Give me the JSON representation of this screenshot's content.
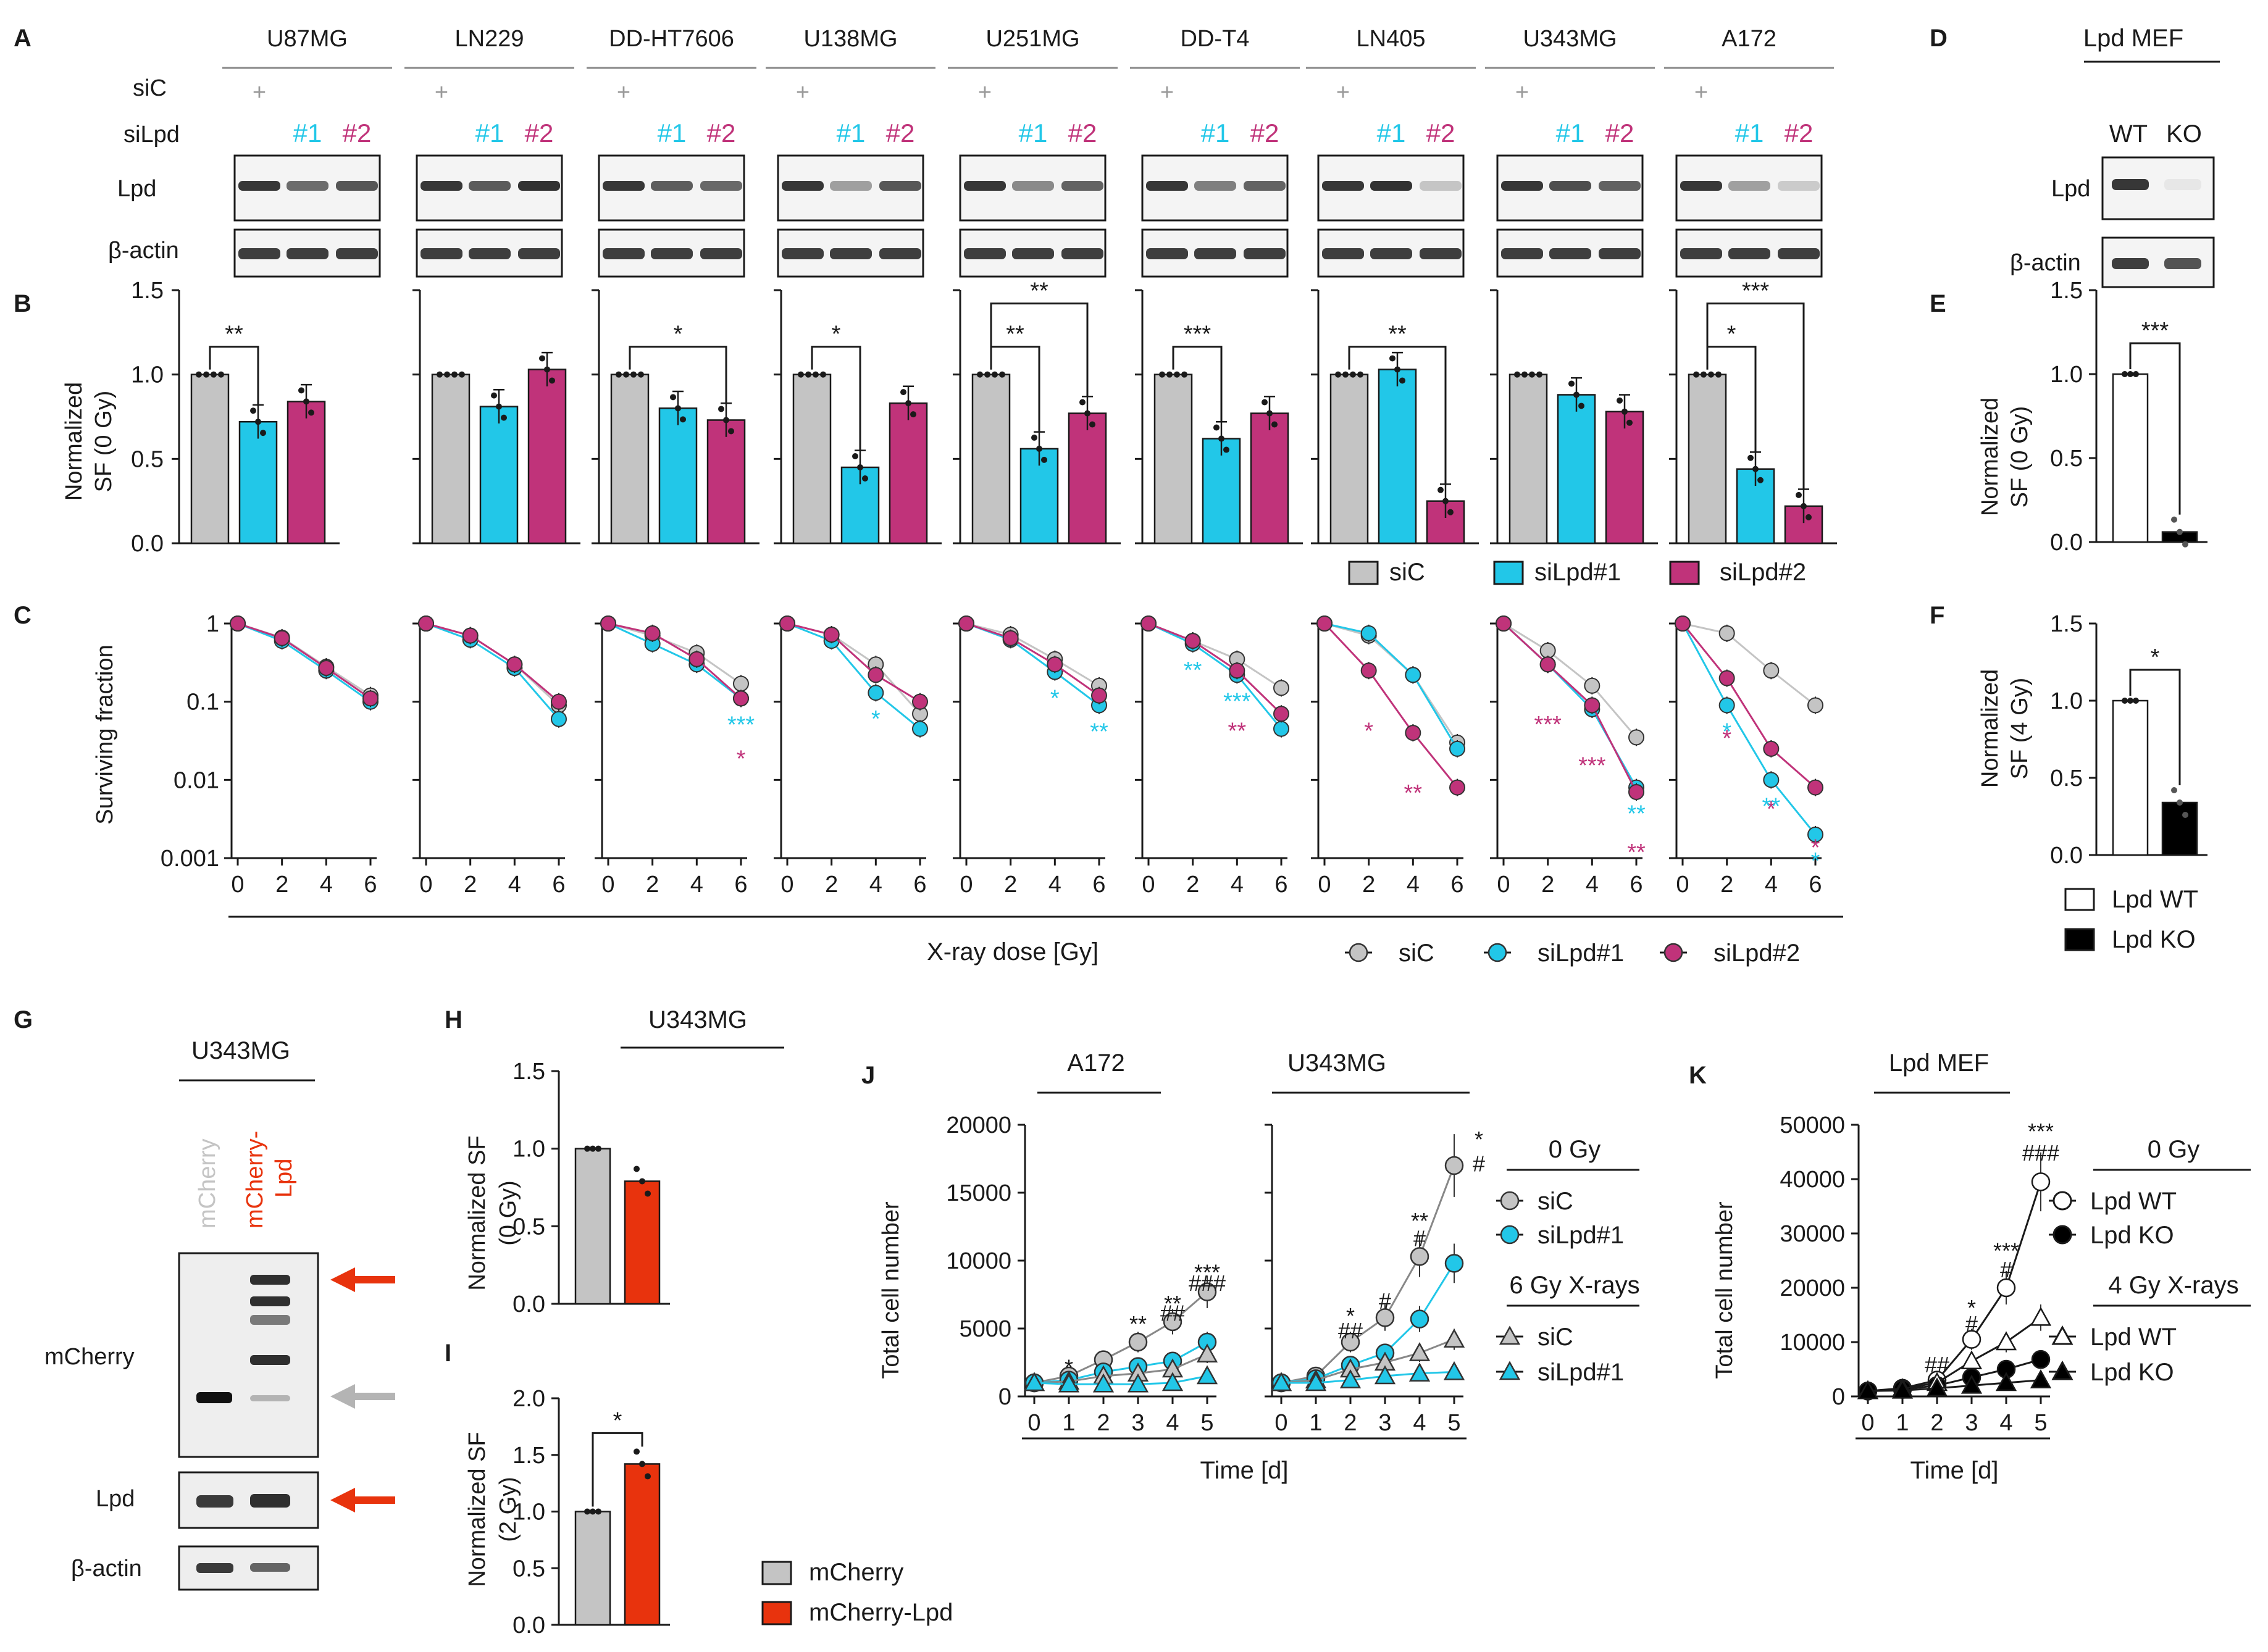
{
  "colors": {
    "siC": "#c4c4c4",
    "siLpd1": "#22c7e8",
    "siLpd2": "#c0337a",
    "mcherry": "#c4c4c4",
    "mcherry_lpd": "#e8330d",
    "wt": "#ffffff",
    "ko": "#000000",
    "text": "#1a1a1a"
  },
  "labels": {
    "A": "A",
    "B": "B",
    "C": "C",
    "D": "D",
    "E": "E",
    "F": "F",
    "G": "G",
    "H": "H",
    "I": "I",
    "J": "J",
    "K": "K"
  },
  "panel_a": {
    "cell_lines": [
      "U87MG",
      "LN229",
      "DD-HT7606",
      "U138MG",
      "U251MG",
      "DD-T4",
      "LN405",
      "U343MG",
      "A172"
    ],
    "siC_label": "siC",
    "siLpd_label": "siLpd",
    "plus": "+",
    "sirna_1": "#1",
    "sirna_2": "#2",
    "lpd_label": "Lpd",
    "actin_label": "β-actin"
  },
  "panel_b": {
    "ylabel_1": "Normalized",
    "ylabel_2": "SF (0 Gy)",
    "yticks": [
      "0.0",
      "0.5",
      "1.0",
      "1.5"
    ],
    "ylim": [
      0,
      1.5
    ],
    "means": [
      [
        1.0,
        0.72,
        0.84
      ],
      [
        1.0,
        0.81,
        1.03
      ],
      [
        1.0,
        0.8,
        0.73
      ],
      [
        1.0,
        0.45,
        0.83
      ],
      [
        1.0,
        0.56,
        0.77
      ],
      [
        1.0,
        0.62,
        0.77
      ],
      [
        1.0,
        1.03,
        0.25
      ],
      [
        1.0,
        0.88,
        0.78
      ],
      [
        1.0,
        0.44,
        0.22
      ]
    ],
    "significance": [
      [
        {
          "pair": [
            0,
            1
          ],
          "text": "**"
        }
      ],
      [],
      [
        {
          "pair": [
            0,
            2
          ],
          "text": "*"
        }
      ],
      [
        {
          "pair": [
            0,
            1
          ],
          "text": "*"
        }
      ],
      [
        {
          "pair": [
            0,
            1
          ],
          "text": "**"
        },
        {
          "pair": [
            0,
            2
          ],
          "text": "**"
        }
      ],
      [
        {
          "pair": [
            0,
            1
          ],
          "text": "***"
        }
      ],
      [
        {
          "pair": [
            0,
            2
          ],
          "text": "**"
        }
      ],
      [],
      [
        {
          "pair": [
            0,
            1
          ],
          "text": "*"
        },
        {
          "pair": [
            0,
            2
          ],
          "text": "***"
        }
      ]
    ],
    "legend": [
      "siC",
      "siLpd#1",
      "siLpd#2"
    ]
  },
  "panel_c": {
    "ylabel": "Surviving fraction",
    "yticks": [
      "0.001",
      "0.01",
      "0.1",
      "1"
    ],
    "xticks": [
      "0",
      "2",
      "4",
      "6"
    ],
    "xlabel": "X-ray dose [Gy]",
    "legend": [
      "siC",
      "siLpd#1",
      "siLpd#2"
    ]
  },
  "panel_d": {
    "title": "Lpd MEF",
    "wt": "WT",
    "ko": "KO",
    "lpd_label": "Lpd",
    "actin_label": "β-actin"
  },
  "panel_e": {
    "ylabel_1": "Normalized",
    "ylabel_2": "SF (0 Gy)",
    "yticks": [
      "0.0",
      "0.5",
      "1.0",
      "1.5"
    ],
    "values": [
      1.0,
      0.06
    ],
    "significance": "***"
  },
  "panel_f": {
    "ylabel_1": "Normalized",
    "ylabel_2": "SF (4 Gy)",
    "yticks": [
      "0.0",
      "0.5",
      "1.0",
      "1.5"
    ],
    "values": [
      1.0,
      0.34
    ],
    "significance": "*",
    "legend": [
      "Lpd WT",
      "Lpd KO"
    ]
  },
  "panel_g": {
    "title": "U343MG",
    "lane1": "mCherry",
    "lane2_1": "mCherry-",
    "lane2_2": "Lpd",
    "mcherry_label": "mCherry",
    "lpd_label": "Lpd",
    "actin_label": "β-actin"
  },
  "panel_h": {
    "title": "U343MG",
    "ylabel_1": "Normalized SF",
    "ylabel_2": "(0 Gy)",
    "yticks": [
      "0.0",
      "0.5",
      "1.0",
      "1.5"
    ],
    "values": [
      1.0,
      0.79
    ]
  },
  "panel_i": {
    "ylabel_1": "Normalized SF",
    "ylabel_2": "(2 Gy)",
    "yticks": [
      "0.0",
      "0.5",
      "1.0",
      "1.5",
      "2.0"
    ],
    "values": [
      1.0,
      1.42
    ],
    "significance": "*",
    "legend": [
      "mCherry",
      "mCherry-Lpd"
    ]
  },
  "panel_j": {
    "titles": [
      "A172",
      "U343MG"
    ],
    "ylabel": "Total cell number",
    "yticks": [
      "0",
      "5000",
      "10000",
      "15000",
      "20000"
    ],
    "xticks": [
      "0",
      "1",
      "2",
      "3",
      "4",
      "5"
    ],
    "xlabel": "Time [d]",
    "legend_0gy": "0 Gy",
    "legend_6gy": "6 Gy X-rays",
    "legend_siC": "siC",
    "legend_siLpd": "siLpd#1"
  },
  "panel_k": {
    "title": "Lpd MEF",
    "ylabel": "Total cell number",
    "yticks": [
      "0",
      "10000",
      "20000",
      "30000",
      "40000",
      "50000"
    ],
    "xticks": [
      "0",
      "1",
      "2",
      "3",
      "4",
      "5"
    ],
    "xlabel": "Time [d]",
    "legend_0gy": "0 Gy",
    "legend_4gy": "4 Gy X-rays",
    "legend_wt": "Lpd WT",
    "legend_ko": "Lpd KO"
  },
  "chart_data": [
    {
      "type": "bar",
      "panel": "B",
      "title": "",
      "ylabel": "Normalized SF (0 Gy)",
      "ylim": [
        0,
        1.5
      ],
      "categories": [
        "U87MG",
        "LN229",
        "DD-HT7606",
        "U138MG",
        "U251MG",
        "DD-T4",
        "LN405",
        "U343MG",
        "A172"
      ],
      "series": [
        {
          "name": "siC",
          "values": [
            1.0,
            1.0,
            1.0,
            1.0,
            1.0,
            1.0,
            1.0,
            1.0,
            1.0
          ]
        },
        {
          "name": "siLpd#1",
          "values": [
            0.72,
            0.81,
            0.8,
            0.45,
            0.56,
            0.62,
            1.03,
            0.88,
            0.44
          ]
        },
        {
          "name": "siLpd#2",
          "values": [
            0.84,
            1.03,
            0.73,
            0.83,
            0.77,
            0.77,
            0.25,
            0.78,
            0.22
          ]
        }
      ]
    },
    {
      "type": "line",
      "panel": "C",
      "ylabel": "Surviving fraction",
      "xlabel": "X-ray dose [Gy]",
      "yscale": "log",
      "ylim": [
        0.001,
        1
      ],
      "x": [
        0,
        2,
        4,
        6
      ],
      "lines": [
        {
          "cell": "U87MG",
          "series": [
            {
              "name": "siC",
              "values": [
                1,
                0.66,
                0.28,
                0.12
              ]
            },
            {
              "name": "siLpd#1",
              "values": [
                1,
                0.6,
                0.25,
                0.1
              ]
            },
            {
              "name": "siLpd#2",
              "values": [
                1,
                0.65,
                0.27,
                0.11
              ]
            }
          ]
        },
        {
          "cell": "LN229",
          "series": [
            {
              "name": "siC",
              "values": [
                1,
                0.7,
                0.3,
                0.09
              ]
            },
            {
              "name": "siLpd#1",
              "values": [
                1,
                0.62,
                0.27,
                0.06
              ]
            },
            {
              "name": "siLpd#2",
              "values": [
                1,
                0.7,
                0.3,
                0.1
              ]
            }
          ]
        },
        {
          "cell": "DD-HT7606",
          "series": [
            {
              "name": "siC",
              "values": [
                1,
                0.7,
                0.42,
                0.17
              ]
            },
            {
              "name": "siLpd#1",
              "values": [
                1,
                0.55,
                0.3,
                0.11
              ]
            },
            {
              "name": "siLpd#2",
              "values": [
                1,
                0.75,
                0.35,
                0.11
              ]
            }
          ]
        },
        {
          "cell": "U138MG",
          "series": [
            {
              "name": "siC",
              "values": [
                1,
                0.72,
                0.3,
                0.07
              ]
            },
            {
              "name": "siLpd#1",
              "values": [
                1,
                0.6,
                0.13,
                0.045
              ]
            },
            {
              "name": "siLpd#2",
              "values": [
                1,
                0.72,
                0.22,
                0.1
              ]
            }
          ]
        },
        {
          "cell": "U251MG",
          "series": [
            {
              "name": "siC",
              "values": [
                1,
                0.72,
                0.35,
                0.16
              ]
            },
            {
              "name": "siLpd#1",
              "values": [
                1,
                0.62,
                0.24,
                0.09
              ]
            },
            {
              "name": "siLpd#2",
              "values": [
                1,
                0.65,
                0.3,
                0.12
              ]
            }
          ]
        },
        {
          "cell": "DD-T4",
          "series": [
            {
              "name": "siC",
              "values": [
                1,
                0.6,
                0.35,
                0.15
              ]
            },
            {
              "name": "siLpd#1",
              "values": [
                1,
                0.55,
                0.22,
                0.045
              ]
            },
            {
              "name": "siLpd#2",
              "values": [
                1,
                0.6,
                0.25,
                0.07
              ]
            }
          ]
        },
        {
          "cell": "LN405",
          "series": [
            {
              "name": "siC",
              "values": [
                1,
                0.7,
                0.22,
                0.03
              ]
            },
            {
              "name": "siLpd#1",
              "values": [
                1,
                0.75,
                0.22,
                0.025
              ]
            },
            {
              "name": "siLpd#2",
              "values": [
                1,
                0.25,
                0.04,
                0.008
              ]
            }
          ]
        },
        {
          "cell": "U343MG",
          "series": [
            {
              "name": "siC",
              "values": [
                1,
                0.45,
                0.16,
                0.035
              ]
            },
            {
              "name": "siLpd#1",
              "values": [
                1,
                0.3,
                0.08,
                0.008
              ]
            },
            {
              "name": "siLpd#2",
              "values": [
                1,
                0.3,
                0.09,
                0.007
              ]
            }
          ]
        },
        {
          "cell": "A172",
          "series": [
            {
              "name": "siC",
              "values": [
                1,
                0.75,
                0.25,
                0.09
              ]
            },
            {
              "name": "siLpd#1",
              "values": [
                1,
                0.09,
                0.01,
                0.002
              ]
            },
            {
              "name": "siLpd#2",
              "values": [
                1,
                0.2,
                0.025,
                0.008
              ]
            }
          ]
        }
      ],
      "significance": [
        {
          "cell": "DD-HT7606",
          "x": 6,
          "series": "siLpd#1",
          "text": "***"
        },
        {
          "cell": "DD-HT7606",
          "x": 6,
          "series": "siLpd#2",
          "text": "*"
        },
        {
          "cell": "U138MG",
          "x": 4,
          "series": "siLpd#1",
          "text": "*"
        },
        {
          "cell": "U251MG",
          "x": 4,
          "series": "siLpd#1",
          "text": "*"
        },
        {
          "cell": "U251MG",
          "x": 6,
          "series": "siLpd#1",
          "text": "**"
        },
        {
          "cell": "DD-T4",
          "x": 2,
          "series": "siLpd#1",
          "text": "**"
        },
        {
          "cell": "DD-T4",
          "x": 4,
          "series": "siLpd#1",
          "text": "***"
        },
        {
          "cell": "DD-T4",
          "x": 4,
          "series": "siLpd#2",
          "text": "**"
        },
        {
          "cell": "LN405",
          "x": 2,
          "series": "siLpd#2",
          "text": "*"
        },
        {
          "cell": "LN405",
          "x": 4,
          "series": "siLpd#2",
          "text": "**"
        },
        {
          "cell": "U343MG",
          "x": 2,
          "series": "siLpd#2",
          "text": "***"
        },
        {
          "cell": "U343MG",
          "x": 4,
          "series": "siLpd#2",
          "text": "***"
        },
        {
          "cell": "U343MG",
          "x": 6,
          "series": "siLpd#1",
          "text": "**"
        },
        {
          "cell": "U343MG",
          "x": 6,
          "series": "siLpd#2",
          "text": "**"
        },
        {
          "cell": "A172",
          "x": 2,
          "series": "siLpd#2",
          "text": "*"
        },
        {
          "cell": "A172",
          "x": 2,
          "series": "siLpd#1",
          "text": "*"
        },
        {
          "cell": "A172",
          "x": 4,
          "series": "siLpd#2",
          "text": "*"
        },
        {
          "cell": "A172",
          "x": 4,
          "series": "siLpd#1",
          "text": "**"
        },
        {
          "cell": "A172",
          "x": 6,
          "series": "siLpd#2",
          "text": "*"
        },
        {
          "cell": "A172",
          "x": 6,
          "series": "siLpd#1",
          "text": "*"
        }
      ]
    },
    {
      "type": "bar",
      "panel": "E",
      "ylabel": "Normalized SF (0 Gy)",
      "ylim": [
        0,
        1.5
      ],
      "categories": [
        "Lpd WT",
        "Lpd KO"
      ],
      "values": [
        1.0,
        0.06
      ]
    },
    {
      "type": "bar",
      "panel": "F",
      "ylabel": "Normalized SF (4 Gy)",
      "ylim": [
        0,
        1.5
      ],
      "categories": [
        "Lpd WT",
        "Lpd KO"
      ],
      "values": [
        1.0,
        0.34
      ]
    },
    {
      "type": "bar",
      "panel": "H",
      "title": "U343MG",
      "ylabel": "Normalized SF (0 Gy)",
      "ylim": [
        0,
        1.5
      ],
      "categories": [
        "mCherry",
        "mCherry-Lpd"
      ],
      "values": [
        1.0,
        0.79
      ]
    },
    {
      "type": "bar",
      "panel": "I",
      "ylabel": "Normalized SF (2 Gy)",
      "ylim": [
        0,
        2.0
      ],
      "categories": [
        "mCherry",
        "mCherry-Lpd"
      ],
      "values": [
        1.0,
        1.42
      ]
    },
    {
      "type": "line",
      "panel": "J",
      "title": "A172",
      "ylabel": "Total cell number",
      "xlabel": "Time [d]",
      "ylim": [
        0,
        20000
      ],
      "x": [
        0,
        1,
        2,
        3,
        4,
        5
      ],
      "series": [
        {
          "name": "siC 0 Gy",
          "values": [
            1000,
            1500,
            2700,
            4000,
            5500,
            7700
          ]
        },
        {
          "name": "siLpd#1 0 Gy",
          "values": [
            1000,
            1200,
            1800,
            2200,
            2600,
            4000
          ]
        },
        {
          "name": "siC 6 Gy X-rays",
          "values": [
            1000,
            1100,
            1500,
            1700,
            2000,
            3100
          ]
        },
        {
          "name": "siLpd#1 6 Gy X-rays",
          "values": [
            1000,
            900,
            900,
            900,
            1000,
            1500
          ]
        }
      ]
    },
    {
      "type": "line",
      "panel": "J",
      "title": "U343MG",
      "ylabel": "Total cell number",
      "xlabel": "Time [d]",
      "ylim": [
        0,
        20000
      ],
      "x": [
        0,
        1,
        2,
        3,
        4,
        5
      ],
      "series": [
        {
          "name": "siC 0 Gy",
          "values": [
            1000,
            1500,
            4000,
            5800,
            10300,
            17000
          ]
        },
        {
          "name": "siLpd#1 0 Gy",
          "values": [
            1000,
            1300,
            2300,
            3200,
            5700,
            9800
          ]
        },
        {
          "name": "siC 6 Gy X-rays",
          "values": [
            1000,
            1200,
            2000,
            2500,
            3200,
            4200
          ]
        },
        {
          "name": "siLpd#1 6 Gy X-rays",
          "values": [
            1000,
            1000,
            1200,
            1500,
            1700,
            1800
          ]
        }
      ]
    },
    {
      "type": "line",
      "panel": "K",
      "title": "Lpd MEF",
      "ylabel": "Total cell number",
      "xlabel": "Time [d]",
      "ylim": [
        0,
        50000
      ],
      "x": [
        0,
        1,
        2,
        3,
        4,
        5
      ],
      "series": [
        {
          "name": "Lpd WT 0 Gy",
          "values": [
            1000,
            1500,
            3000,
            10500,
            20000,
            39500
          ]
        },
        {
          "name": "Lpd KO 0 Gy",
          "values": [
            1000,
            1300,
            2000,
            3500,
            5000,
            6800
          ]
        },
        {
          "name": "Lpd WT 4 Gy X-rays",
          "values": [
            1000,
            1400,
            2500,
            6500,
            10000,
            14500
          ]
        },
        {
          "name": "Lpd KO 4 Gy X-rays",
          "values": [
            1000,
            1100,
            1500,
            2000,
            2500,
            3000
          ]
        }
      ]
    }
  ]
}
